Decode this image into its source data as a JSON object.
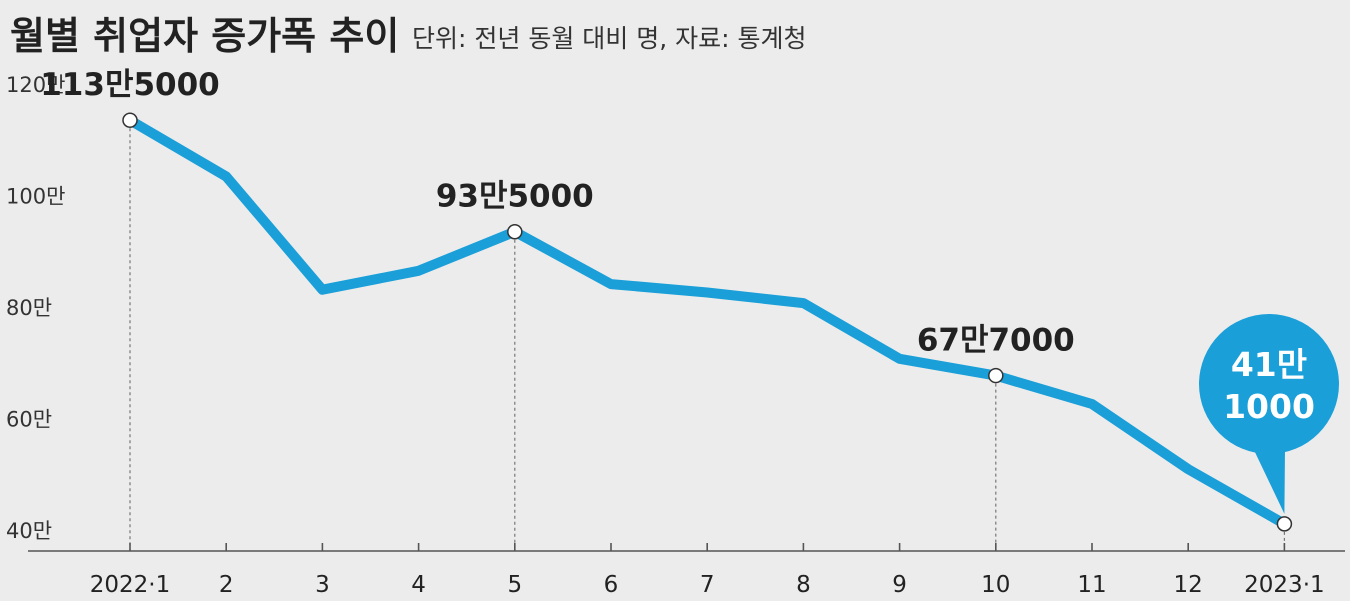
{
  "chart_data": {
    "type": "line",
    "title": "월별 취업자 증가폭 추이",
    "subtitle": "단위: 전년 동월 대비 명, 자료: 통계청",
    "x": [
      "2022·1",
      "2",
      "3",
      "4",
      "5",
      "6",
      "7",
      "8",
      "9",
      "10",
      "11",
      "12",
      "2023·1"
    ],
    "values": [
      1135000,
      1034000,
      831000,
      865000,
      935000,
      841000,
      826000,
      807000,
      707000,
      677000,
      626000,
      509000,
      411000
    ],
    "ylim": [
      400000,
      1200000
    ],
    "yticks": [
      400000,
      600000,
      800000,
      1000000,
      1200000
    ],
    "ytick_labels": [
      "40만",
      "60만",
      "80만",
      "100만",
      "120만"
    ],
    "grid": false,
    "annotations": [
      {
        "index": 0,
        "label": "113만5000"
      },
      {
        "index": 4,
        "label": "93만5000"
      },
      {
        "index": 9,
        "label": "67만7000"
      }
    ],
    "callout": {
      "index": 12,
      "line1": "41만",
      "line2": "1000"
    },
    "colors": {
      "line": "#1a9fd9",
      "callout": "#1a9fd9",
      "axis": "#555555",
      "background": "#ececec"
    }
  }
}
